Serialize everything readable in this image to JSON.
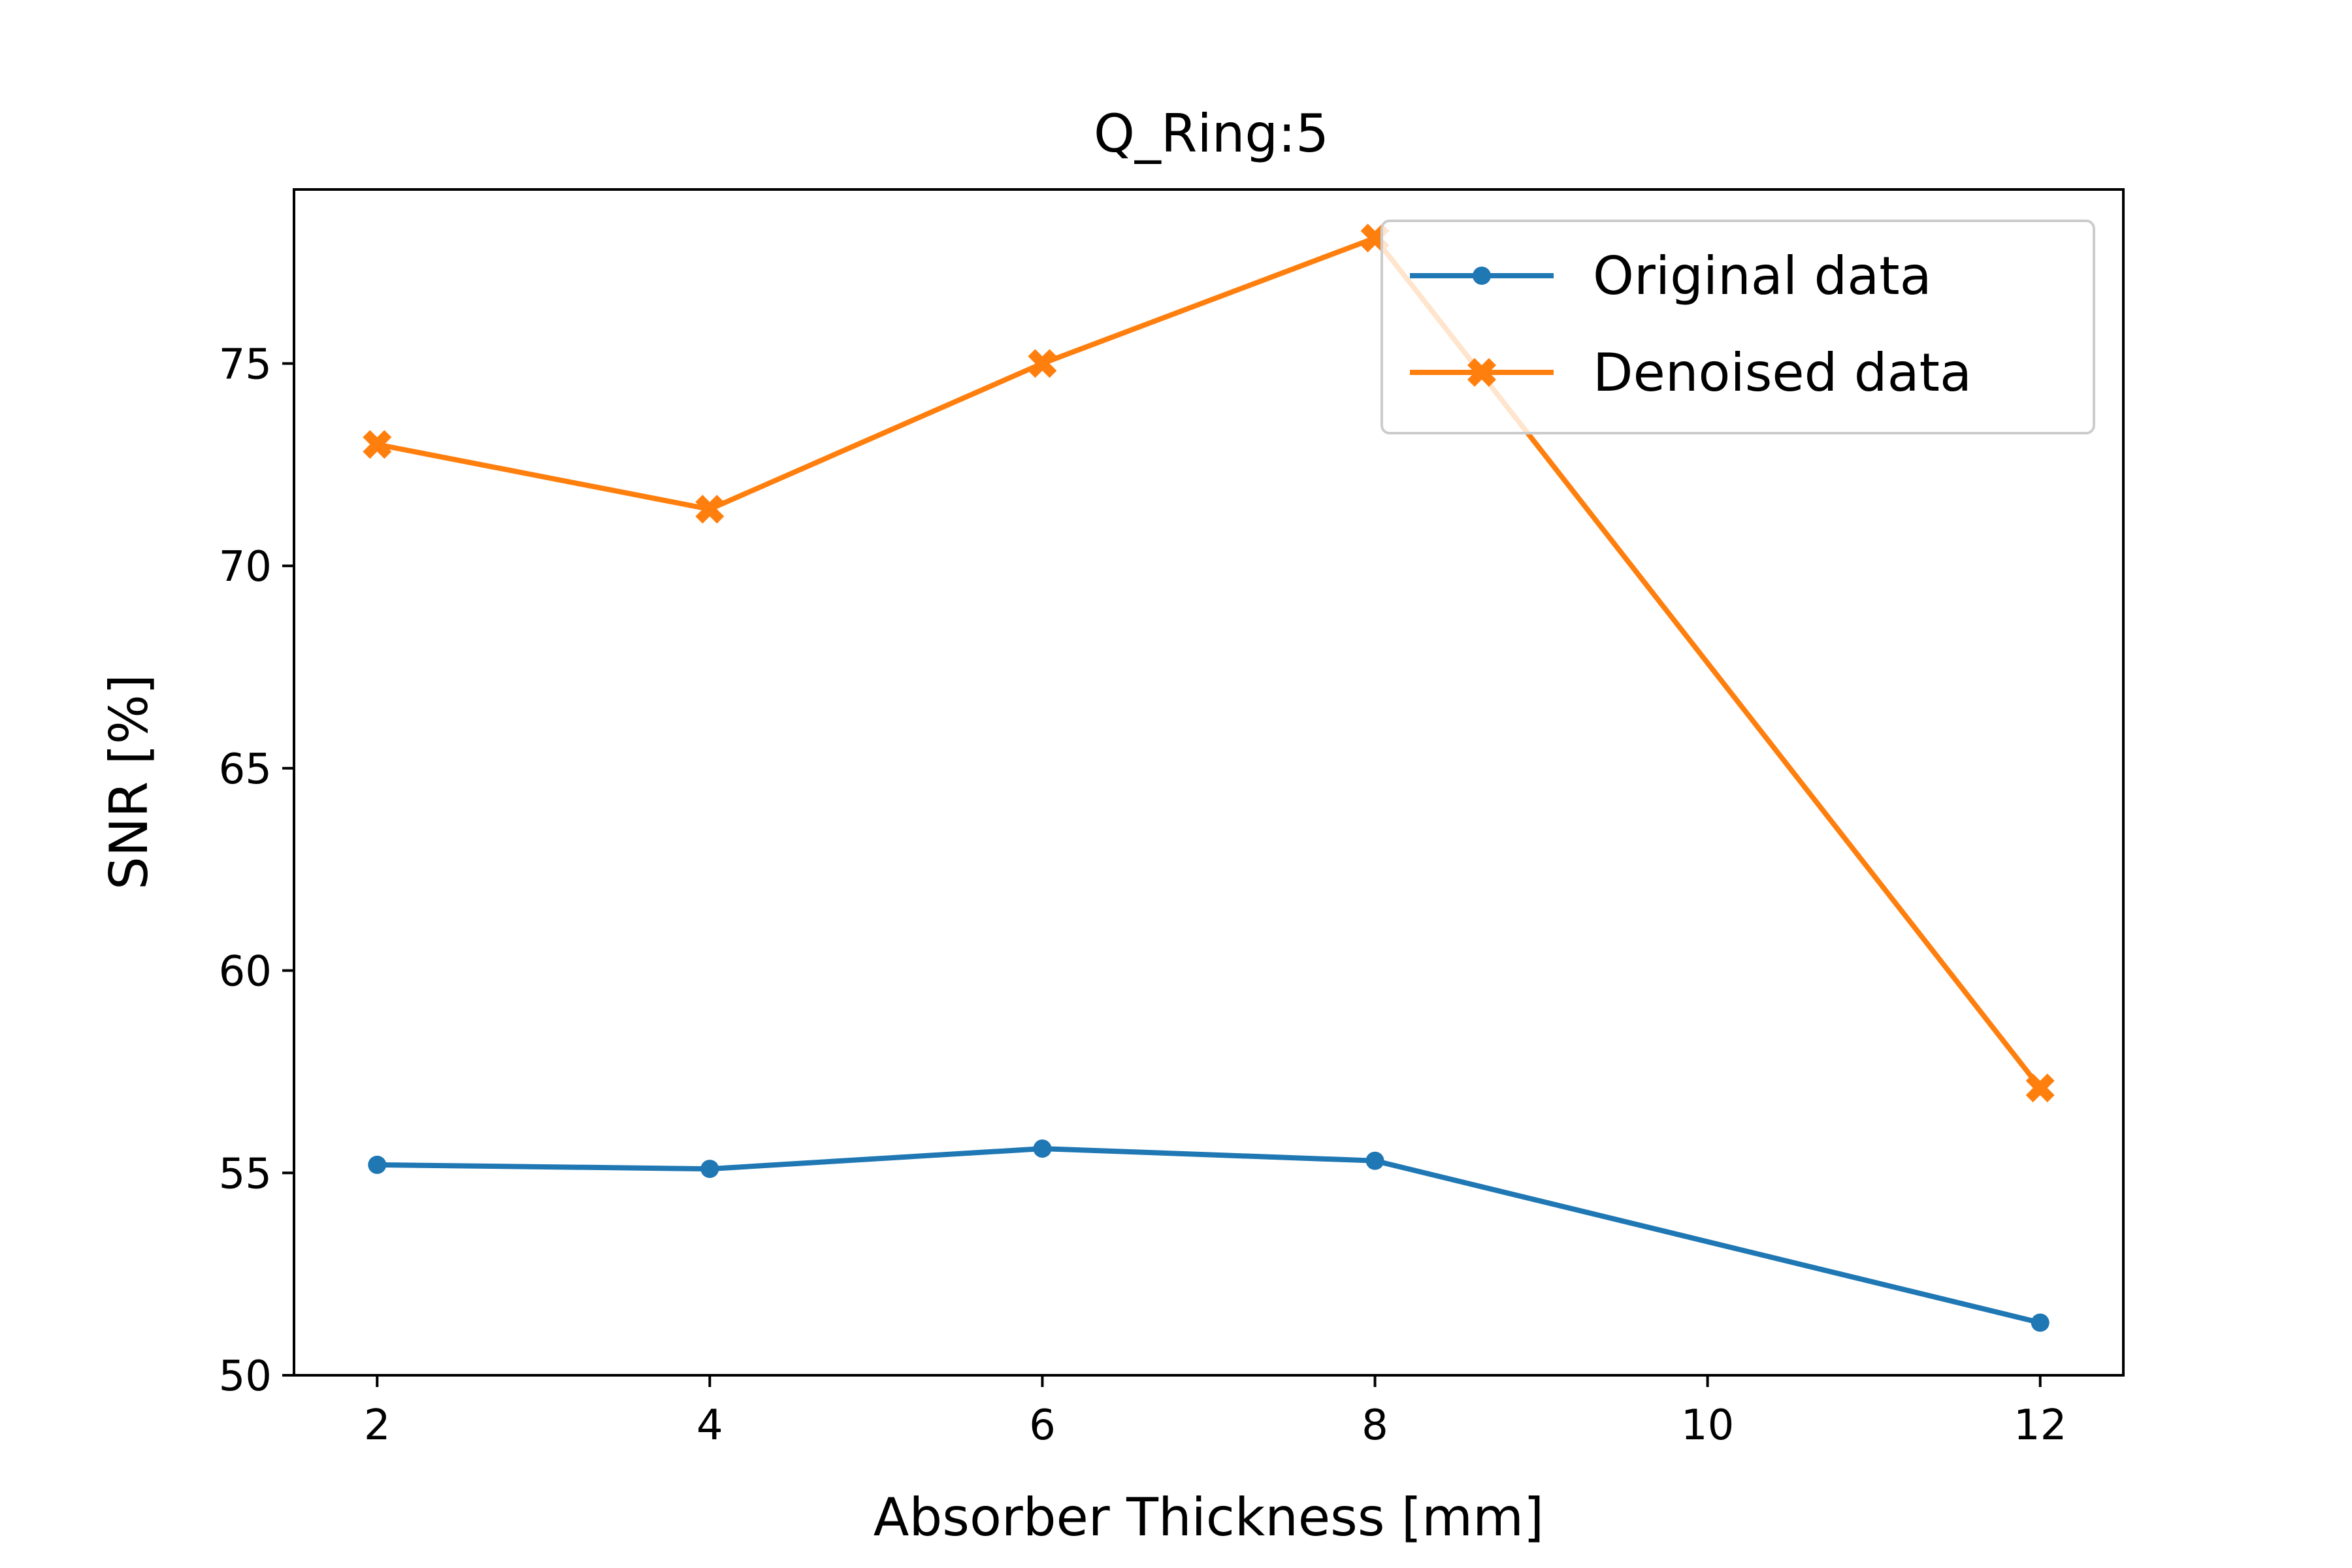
{
  "chart_data": {
    "type": "line",
    "title": "Q_Ring:5",
    "xlabel": "Absorber Thickness [mm]",
    "ylabel": "SNR [%]",
    "x": [
      2,
      4,
      6,
      8,
      12
    ],
    "xlim": [
      1.5,
      12.5
    ],
    "ylim": [
      50,
      79.3
    ],
    "xticks": [
      2,
      4,
      6,
      8,
      10,
      12
    ],
    "yticks": [
      50,
      55,
      60,
      65,
      70,
      75
    ],
    "grid": false,
    "legend_position": "top-right",
    "series": [
      {
        "name": "Original data",
        "color": "#1f77b4",
        "marker": "dot",
        "values": [
          55.2,
          55.1,
          55.6,
          55.3,
          51.3
        ]
      },
      {
        "name": "Denoised data",
        "color": "#ff7f0e",
        "marker": "x",
        "values": [
          73.0,
          71.4,
          75.0,
          78.1,
          57.1
        ]
      }
    ]
  }
}
